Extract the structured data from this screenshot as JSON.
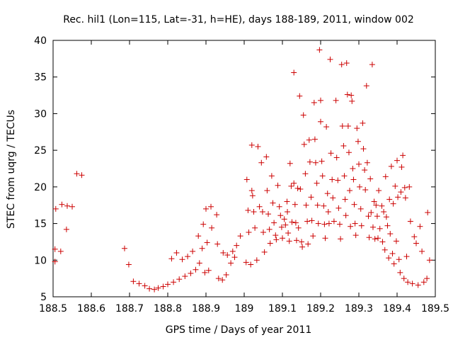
{
  "chart_data": {
    "type": "scatter",
    "title": "Rec. hil1 (Lon=115, Lat=-31, h=HE), days 188-189, 2011, window 002",
    "xlabel": "GPS time / Days of year 2011",
    "ylabel": "STEC from uqrg / TECUs",
    "xlim": [
      188.5,
      189.5
    ],
    "ylim": [
      5,
      40
    ],
    "xticks": [
      "188.5",
      "188.6",
      "188.7",
      "188.8",
      "188.9",
      "189",
      "189.1",
      "189.2",
      "189.3",
      "189.4",
      "189.5"
    ],
    "yticks": [
      "5",
      "10",
      "15",
      "20",
      "25",
      "30",
      "35",
      "40"
    ],
    "marker": "+",
    "color": "#cc0000",
    "legend": "none",
    "grid": false,
    "series": [
      {
        "name": "STEC",
        "points": [
          [
            188.505,
            9.8
          ],
          [
            188.505,
            11.5
          ],
          [
            188.507,
            17.0
          ],
          [
            188.52,
            11.2
          ],
          [
            188.523,
            17.6
          ],
          [
            188.535,
            14.2
          ],
          [
            188.537,
            17.4
          ],
          [
            188.55,
            17.3
          ],
          [
            188.562,
            21.8
          ],
          [
            188.575,
            21.6
          ],
          [
            188.687,
            11.6
          ],
          [
            188.698,
            9.4
          ],
          [
            188.71,
            7.1
          ],
          [
            188.725,
            6.8
          ],
          [
            188.74,
            6.5
          ],
          [
            188.752,
            6.1
          ],
          [
            188.765,
            6.0
          ],
          [
            188.775,
            6.2
          ],
          [
            188.788,
            6.4
          ],
          [
            188.8,
            6.7
          ],
          [
            188.81,
            10.2
          ],
          [
            188.815,
            7.0
          ],
          [
            188.823,
            11.0
          ],
          [
            188.83,
            7.4
          ],
          [
            188.838,
            10.1
          ],
          [
            188.845,
            7.8
          ],
          [
            188.852,
            10.5
          ],
          [
            188.86,
            8.2
          ],
          [
            188.865,
            11.2
          ],
          [
            188.873,
            8.7
          ],
          [
            188.88,
            13.3
          ],
          [
            188.883,
            9.6
          ],
          [
            188.89,
            11.6
          ],
          [
            188.893,
            14.9
          ],
          [
            188.897,
            8.3
          ],
          [
            188.9,
            17.0
          ],
          [
            188.903,
            12.4
          ],
          [
            188.907,
            8.6
          ],
          [
            188.913,
            17.3
          ],
          [
            188.915,
            14.4
          ],
          [
            188.928,
            16.2
          ],
          [
            188.93,
            12.2
          ],
          [
            188.933,
            7.5
          ],
          [
            188.943,
            7.3
          ],
          [
            188.945,
            11.0
          ],
          [
            188.953,
            8.0
          ],
          [
            188.956,
            10.7
          ],
          [
            188.965,
            9.6
          ],
          [
            188.97,
            11.2
          ],
          [
            188.975,
            10.4
          ],
          [
            188.98,
            12.0
          ],
          [
            188.99,
            13.3
          ],
          [
            189.005,
            9.7
          ],
          [
            189.007,
            21.0
          ],
          [
            189.01,
            16.8
          ],
          [
            189.012,
            13.8
          ],
          [
            189.017,
            9.4
          ],
          [
            189.02,
            25.7
          ],
          [
            189.02,
            19.5
          ],
          [
            189.022,
            18.8
          ],
          [
            189.025,
            16.6
          ],
          [
            189.028,
            14.4
          ],
          [
            189.033,
            10.0
          ],
          [
            189.036,
            25.5
          ],
          [
            189.04,
            17.3
          ],
          [
            189.045,
            23.3
          ],
          [
            189.048,
            16.6
          ],
          [
            189.05,
            13.8
          ],
          [
            189.053,
            11.1
          ],
          [
            189.058,
            24.1
          ],
          [
            189.06,
            19.5
          ],
          [
            189.063,
            16.3
          ],
          [
            189.066,
            14.2
          ],
          [
            189.068,
            12.3
          ],
          [
            189.072,
            21.5
          ],
          [
            189.075,
            17.8
          ],
          [
            189.078,
            15.1
          ],
          [
            189.082,
            13.4
          ],
          [
            189.084,
            12.8
          ],
          [
            189.088,
            20.2
          ],
          [
            189.092,
            17.3
          ],
          [
            189.095,
            16.1
          ],
          [
            189.098,
            14.5
          ],
          [
            189.1,
            13.0
          ],
          [
            189.105,
            15.6
          ],
          [
            189.108,
            14.8
          ],
          [
            189.112,
            18.0
          ],
          [
            189.113,
            16.6
          ],
          [
            189.115,
            13.7
          ],
          [
            189.118,
            12.6
          ],
          [
            189.12,
            23.2
          ],
          [
            189.123,
            20.1
          ],
          [
            189.125,
            15.2
          ],
          [
            189.13,
            35.6
          ],
          [
            189.13,
            20.5
          ],
          [
            189.133,
            17.6
          ],
          [
            189.135,
            15.1
          ],
          [
            189.137,
            12.7
          ],
          [
            189.14,
            19.8
          ],
          [
            189.142,
            14.4
          ],
          [
            189.145,
            32.4
          ],
          [
            189.147,
            19.7
          ],
          [
            189.15,
            12.5
          ],
          [
            189.152,
            11.8
          ],
          [
            189.155,
            29.8
          ],
          [
            189.157,
            25.8
          ],
          [
            189.16,
            21.8
          ],
          [
            189.162,
            17.5
          ],
          [
            189.165,
            15.3
          ],
          [
            189.167,
            12.2
          ],
          [
            189.17,
            26.4
          ],
          [
            189.172,
            23.4
          ],
          [
            189.175,
            18.6
          ],
          [
            189.177,
            15.4
          ],
          [
            189.18,
            13.3
          ],
          [
            189.183,
            31.5
          ],
          [
            189.185,
            26.5
          ],
          [
            189.187,
            23.3
          ],
          [
            189.19,
            20.5
          ],
          [
            189.192,
            17.5
          ],
          [
            189.194,
            15.0
          ],
          [
            189.197,
            38.7
          ],
          [
            189.2,
            28.9
          ],
          [
            189.2,
            31.8
          ],
          [
            189.203,
            23.5
          ],
          [
            189.205,
            21.5
          ],
          [
            189.208,
            17.4
          ],
          [
            189.21,
            14.9
          ],
          [
            189.212,
            13.0
          ],
          [
            189.215,
            28.2
          ],
          [
            189.218,
            19.1
          ],
          [
            189.22,
            16.6
          ],
          [
            189.222,
            15.0
          ],
          [
            189.225,
            37.4
          ],
          [
            189.227,
            24.6
          ],
          [
            189.23,
            21.0
          ],
          [
            189.232,
            18.5
          ],
          [
            189.235,
            15.3
          ],
          [
            189.24,
            31.8
          ],
          [
            189.242,
            24.0
          ],
          [
            189.245,
            20.9
          ],
          [
            189.247,
            17.1
          ],
          [
            189.25,
            14.9
          ],
          [
            189.252,
            12.9
          ],
          [
            189.255,
            36.7
          ],
          [
            189.257,
            28.3
          ],
          [
            189.26,
            25.6
          ],
          [
            189.262,
            21.5
          ],
          [
            189.264,
            18.3
          ],
          [
            189.266,
            16.1
          ],
          [
            189.268,
            36.9
          ],
          [
            189.27,
            32.6
          ],
          [
            189.272,
            28.3
          ],
          [
            189.274,
            24.7
          ],
          [
            189.276,
            19.5
          ],
          [
            189.278,
            14.6
          ],
          [
            189.28,
            32.5
          ],
          [
            189.282,
            31.7
          ],
          [
            189.284,
            22.5
          ],
          [
            189.286,
            21.0
          ],
          [
            189.288,
            17.6
          ],
          [
            189.29,
            15.0
          ],
          [
            189.292,
            13.4
          ],
          [
            189.295,
            28.0
          ],
          [
            189.298,
            26.2
          ],
          [
            189.3,
            23.1
          ],
          [
            189.302,
            20.0
          ],
          [
            189.305,
            17.0
          ],
          [
            189.307,
            14.7
          ],
          [
            189.31,
            28.7
          ],
          [
            189.312,
            25.2
          ],
          [
            189.315,
            22.3
          ],
          [
            189.317,
            19.6
          ],
          [
            189.32,
            33.8
          ],
          [
            189.322,
            23.3
          ],
          [
            189.325,
            16.0
          ],
          [
            189.327,
            13.1
          ],
          [
            189.33,
            21.1
          ],
          [
            189.332,
            16.5
          ],
          [
            189.335,
            36.7
          ],
          [
            189.337,
            14.5
          ],
          [
            189.34,
            18.0
          ],
          [
            189.342,
            12.9
          ],
          [
            189.345,
            17.5
          ],
          [
            189.348,
            16.0
          ],
          [
            189.35,
            13.0
          ],
          [
            189.352,
            19.5
          ],
          [
            189.355,
            14.3
          ],
          [
            189.36,
            17.4
          ],
          [
            189.362,
            12.5
          ],
          [
            189.365,
            16.6
          ],
          [
            189.368,
            11.4
          ],
          [
            189.37,
            21.4
          ],
          [
            189.372,
            15.9
          ],
          [
            189.375,
            14.7
          ],
          [
            189.378,
            10.3
          ],
          [
            189.38,
            18.3
          ],
          [
            189.382,
            13.6
          ],
          [
            189.385,
            22.8
          ],
          [
            189.388,
            10.9
          ],
          [
            189.39,
            17.7
          ],
          [
            189.392,
            9.5
          ],
          [
            189.395,
            20.1
          ],
          [
            189.398,
            12.6
          ],
          [
            189.4,
            23.6
          ],
          [
            189.402,
            18.6
          ],
          [
            189.405,
            10.1
          ],
          [
            189.408,
            8.3
          ],
          [
            189.41,
            19.3
          ],
          [
            189.412,
            22.7
          ],
          [
            189.415,
            24.3
          ],
          [
            189.418,
            7.5
          ],
          [
            189.42,
            19.9
          ],
          [
            189.422,
            18.5
          ],
          [
            189.425,
            10.5
          ],
          [
            189.428,
            7.0
          ],
          [
            189.432,
            20.0
          ],
          [
            189.435,
            15.3
          ],
          [
            189.44,
            6.8
          ],
          [
            189.445,
            13.2
          ],
          [
            189.45,
            12.3
          ],
          [
            189.455,
            6.6
          ],
          [
            189.46,
            14.6
          ],
          [
            189.465,
            11.2
          ],
          [
            189.47,
            7.0
          ],
          [
            189.478,
            7.5
          ],
          [
            189.48,
            16.5
          ],
          [
            189.485,
            10.0
          ]
        ]
      }
    ]
  }
}
